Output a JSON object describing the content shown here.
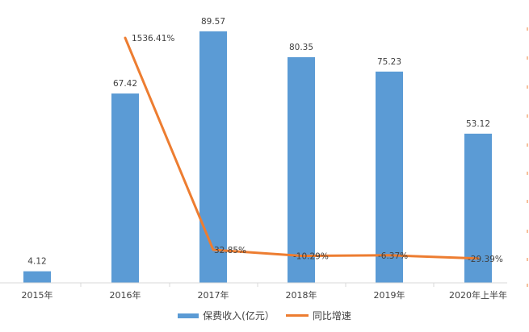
{
  "chart_data": {
    "type": "bar+line",
    "title": "",
    "categories": [
      "2015年",
      "2016年",
      "2017年",
      "2018年",
      "2019年",
      "2020年上半年"
    ],
    "series": [
      {
        "name": "保费收入(亿元)",
        "type": "bar",
        "axis": "primary",
        "color": "#5b9bd5",
        "values": [
          4.12,
          67.42,
          89.57,
          80.35,
          75.23,
          53.12
        ],
        "labels": [
          "4.12",
          "67.42",
          "89.57",
          "80.35",
          "75.23",
          "53.12"
        ]
      },
      {
        "name": "同比增速",
        "type": "line",
        "axis": "secondary",
        "color": "#ed7d31",
        "values": [
          null,
          1536.41,
          32.85,
          -10.29,
          -6.37,
          -29.39
        ],
        "labels": [
          "",
          "1536.41%",
          "32.85%",
          "-10.29%",
          "-6.37%",
          "-29.39%"
        ]
      }
    ],
    "xlabel": "",
    "ylabel": "",
    "ylim": [
      0,
      90
    ],
    "grid": false,
    "legend_position": "bottom"
  },
  "legend": {
    "bar_label": "保费收入(亿元）",
    "line_label": "同比增速"
  },
  "colors": {
    "bar": "#5b9bd5",
    "line": "#ed7d31",
    "axis": "#d9d9d9"
  }
}
